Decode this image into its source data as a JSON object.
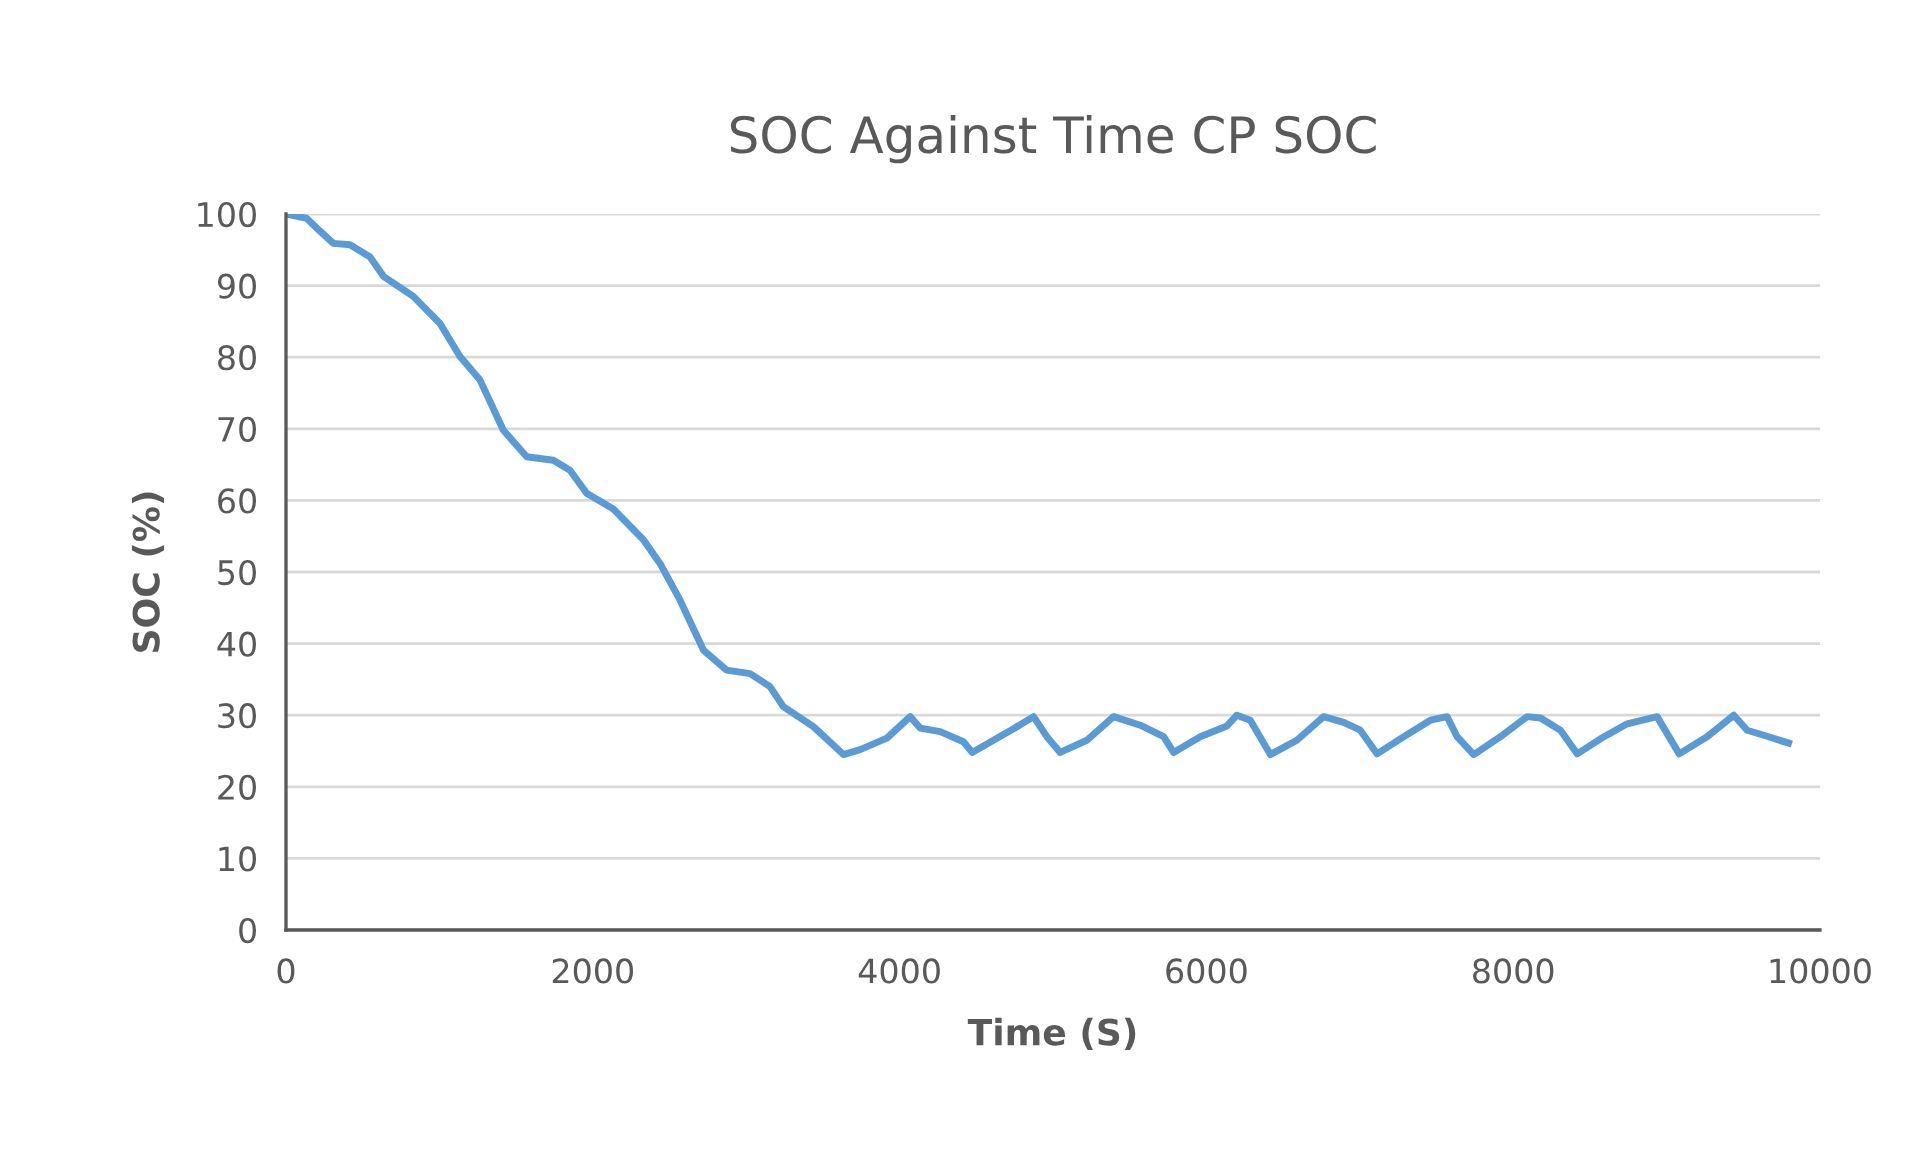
{
  "chart_data": {
    "type": "line",
    "title": "SOC Against Time CP SOC",
    "xlabel": "Time (S)",
    "ylabel": "SOC (%)",
    "xlim": [
      0,
      10000
    ],
    "xticks": [
      0,
      2000,
      4000,
      6000,
      8000,
      10000
    ],
    "ylim": [
      0,
      100
    ],
    "yticks": [
      0,
      10,
      20,
      30,
      40,
      50,
      60,
      70,
      80,
      90,
      100
    ],
    "grid": "y",
    "legend": false,
    "series": [
      {
        "color": "#5b9bd5",
        "x": [
          0,
          134,
          222,
          309,
          417,
          548,
          635,
          830,
          1004,
          1134,
          1265,
          1417,
          1569,
          1743,
          1851,
          1960,
          2134,
          2330,
          2438,
          2568,
          2721,
          2872,
          3025,
          3155,
          3242,
          3438,
          3634,
          3743,
          3917,
          4069,
          4134,
          4265,
          4416,
          4473,
          4612,
          4743,
          4873,
          4960,
          5047,
          5221,
          5395,
          5569,
          5721,
          5786,
          5960,
          6134,
          6199,
          6286,
          6417,
          6590,
          6764,
          6895,
          7003,
          7112,
          7264,
          7460,
          7569,
          7634,
          7743,
          7917,
          8091,
          8178,
          8308,
          8417,
          8569,
          8743,
          8938,
          9082,
          9264,
          9438,
          9525,
          9634,
          9795
        ],
        "values": [
          100,
          99.4,
          97.6,
          95.9,
          95.7,
          94.0,
          91.3,
          88.5,
          84.7,
          80.1,
          76.8,
          69.8,
          66.1,
          65.6,
          64.2,
          61.0,
          58.8,
          54.5,
          51.2,
          46.1,
          39.1,
          36.3,
          35.8,
          34.0,
          31.2,
          28.4,
          24.5,
          25.2,
          26.8,
          29.8,
          28.2,
          27.7,
          26.3,
          24.8,
          26.5,
          28.1,
          29.8,
          27.0,
          24.8,
          26.5,
          29.8,
          28.6,
          27.0,
          24.8,
          27.0,
          28.5,
          30.0,
          29.3,
          24.5,
          26.5,
          29.8,
          29.0,
          27.9,
          24.6,
          26.7,
          29.3,
          29.8,
          27.0,
          24.5,
          27.0,
          29.8,
          29.6,
          27.9,
          24.6,
          26.7,
          28.8,
          29.8,
          24.6,
          27.0,
          30.0,
          27.9,
          27.2,
          26.1
        ]
      }
    ]
  }
}
